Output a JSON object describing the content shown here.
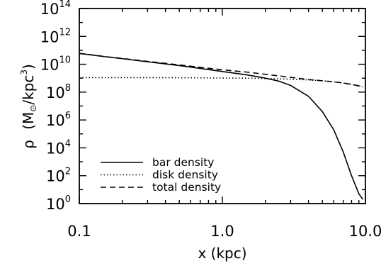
{
  "chart_data": {
    "type": "line",
    "title": "",
    "xlabel": "x (kpc)",
    "ylabel": {
      "symbol": "ρ",
      "unit_mass": "M",
      "unit_subscript": "⊙",
      "unit_length": "/kpc",
      "unit_power": "3"
    },
    "x_scale": "log",
    "y_scale": "log",
    "xlim": [
      0.1,
      10.0
    ],
    "ylim": [
      1,
      100000000000000.0
    ],
    "x_ticks": [
      {
        "value": 0.1,
        "label": "0.1"
      },
      {
        "value": 1.0,
        "label": "1.0"
      },
      {
        "value": 10.0,
        "label": "10.0"
      }
    ],
    "y_ticks": [
      {
        "value": 1,
        "base": "10",
        "exp": "0"
      },
      {
        "value": 100,
        "base": "10",
        "exp": "2"
      },
      {
        "value": 10000,
        "base": "10",
        "exp": "4"
      },
      {
        "value": 1000000,
        "base": "10",
        "exp": "6"
      },
      {
        "value": 100000000,
        "base": "10",
        "exp": "8"
      },
      {
        "value": 10000000000,
        "base": "10",
        "exp": "10"
      },
      {
        "value": 1000000000000,
        "base": "10",
        "exp": "12"
      },
      {
        "value": 100000000000000,
        "base": "10",
        "exp": "14"
      }
    ],
    "grid": false,
    "legend_position": "bottom-left",
    "series": [
      {
        "name": "bar density",
        "line_style": "solid",
        "x": [
          0.1,
          0.15,
          0.2,
          0.3,
          0.5,
          0.7,
          1.0,
          1.5,
          2.0,
          2.5,
          3.0,
          4.0,
          5.0,
          6.0,
          7.0,
          8.0,
          9.0,
          9.6
        ],
        "y": [
          60000000000.0,
          35000000000.0,
          25000000000.0,
          15000000000.0,
          8000000000.0,
          5000000000.0,
          3000000000.0,
          1700000000.0,
          1000000000.0,
          600000000.0,
          300000000.0,
          50000000.0,
          4000000.0,
          200000.0,
          5000.0,
          100.0,
          5,
          2
        ]
      },
      {
        "name": "disk density",
        "line_style": "dotted",
        "x": [
          0.1,
          0.3,
          0.7,
          1.0,
          1.5,
          2.0,
          3.0,
          4.0,
          5.0,
          6.0,
          7.0,
          8.0,
          9.0,
          9.6
        ],
        "y": [
          1100000000.0,
          1100000000.0,
          1050000000.0,
          1030000000.0,
          1000000000.0,
          950000000.0,
          850000000.0,
          750000000.0,
          650000000.0,
          550000000.0,
          450000000.0,
          360000000.0,
          280000000.0,
          230000000.0
        ]
      },
      {
        "name": "total density",
        "line_style": "dashed",
        "x": [
          0.1,
          0.15,
          0.2,
          0.3,
          0.5,
          0.7,
          1.0,
          1.5,
          2.0,
          2.5,
          3.0,
          4.0,
          5.0,
          6.0,
          7.0,
          8.0,
          9.0,
          9.6
        ],
        "y": [
          61000000000.0,
          36000000000.0,
          26000000000.0,
          16000000000.0,
          9000000000.0,
          6000000000.0,
          4000000000.0,
          2700000000.0,
          1900000000.0,
          1450000000.0,
          1150000000.0,
          800000000.0,
          650000000.0,
          550000000.0,
          450000000.0,
          360000000.0,
          280000000.0,
          230000000.0
        ]
      }
    ]
  }
}
